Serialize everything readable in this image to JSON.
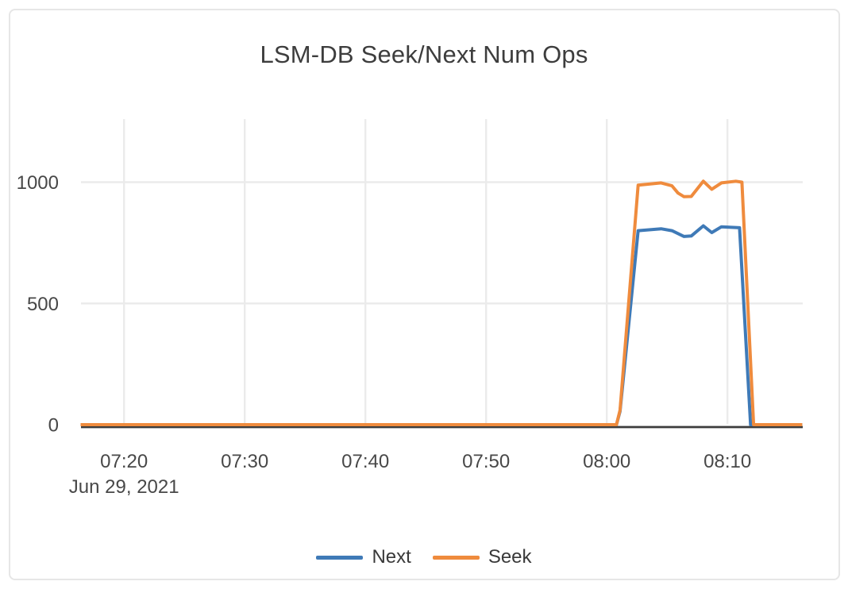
{
  "card": {
    "title": "LSM-DB Seek/Next Num Ops"
  },
  "legend": {
    "items": [
      {
        "label": "Next",
        "color": "#3f7ab7"
      },
      {
        "label": "Seek",
        "color": "#ef8b3d"
      }
    ]
  },
  "colors": {
    "gridline": "#ebebeb",
    "axis_line": "#3c3c3c",
    "tick_text": "#484848",
    "title_text": "#3d3d3d",
    "card_border": "#e6e6e6",
    "next_series": "#3f7ab7",
    "seek_series": "#ef8b3d"
  },
  "chart_data": {
    "type": "line",
    "title": "LSM-DB Seek/Next Num Ops",
    "xlabel": "",
    "ylabel": "",
    "x_axis": {
      "date_label": "Jun 29, 2021",
      "tick_labels": [
        "07:20",
        "07:30",
        "07:40",
        "07:50",
        "08:00",
        "08:10"
      ],
      "range": [
        "07:16:24",
        "08:16:12"
      ],
      "grid": true
    },
    "y_axis": {
      "ticks": [
        0,
        500,
        1000
      ],
      "range": [
        0,
        1260
      ],
      "grid": true
    },
    "legend_position": "bottom-center",
    "series": [
      {
        "name": "Next",
        "color": "#3f7ab7",
        "points": [
          [
            "07:16:24",
            0
          ],
          [
            "08:00:48",
            0
          ],
          [
            "08:01:06",
            55
          ],
          [
            "08:02:36",
            800
          ],
          [
            "08:04:30",
            808
          ],
          [
            "08:05:24",
            800
          ],
          [
            "08:06:24",
            776
          ],
          [
            "08:07:00",
            778
          ],
          [
            "08:08:00",
            820
          ],
          [
            "08:08:42",
            792
          ],
          [
            "08:09:30",
            816
          ],
          [
            "08:11:00",
            812
          ],
          [
            "08:11:55",
            0
          ],
          [
            "08:16:12",
            0
          ]
        ]
      },
      {
        "name": "Seek",
        "color": "#ef8b3d",
        "points": [
          [
            "07:16:24",
            0
          ],
          [
            "08:00:48",
            0
          ],
          [
            "08:01:06",
            60
          ],
          [
            "08:02:36",
            988
          ],
          [
            "08:04:30",
            997
          ],
          [
            "08:05:24",
            985
          ],
          [
            "08:05:54",
            955
          ],
          [
            "08:06:24",
            940
          ],
          [
            "08:07:00",
            941
          ],
          [
            "08:08:00",
            1004
          ],
          [
            "08:08:42",
            971
          ],
          [
            "08:09:30",
            997
          ],
          [
            "08:10:42",
            1004
          ],
          [
            "08:11:12",
            1000
          ],
          [
            "08:12:10",
            0
          ],
          [
            "08:16:12",
            0
          ]
        ]
      }
    ]
  }
}
